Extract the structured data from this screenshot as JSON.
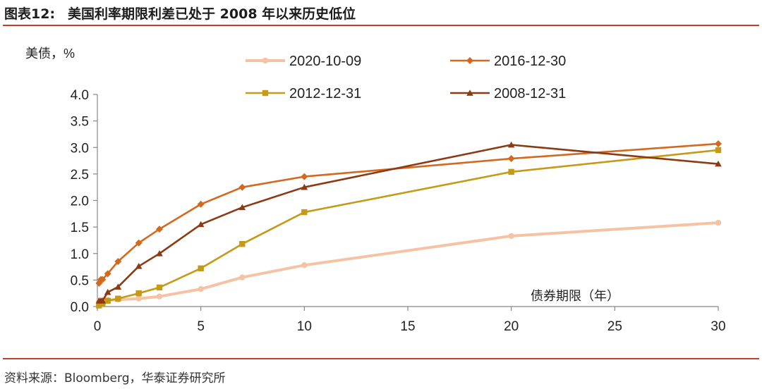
{
  "header": {
    "figure_number": "图表12:",
    "title": "美国利率期限利差已处于 2008 年以来历史低位"
  },
  "footer": {
    "source": "资料来源：Bloomberg，华泰证券研究所"
  },
  "chart_data": {
    "type": "line",
    "title": "美国利率期限利差已处于 2008 年以来历史低位",
    "ylabel": "美债，%",
    "xlabel": "债券期限（年）",
    "xlim": [
      0,
      30
    ],
    "ylim": [
      0,
      4
    ],
    "x_ticks": [
      0,
      5,
      10,
      15,
      20,
      25,
      30
    ],
    "y_ticks": [
      0.0,
      0.5,
      1.0,
      1.5,
      2.0,
      2.5,
      3.0,
      3.5,
      4.0
    ],
    "x_tick_labels": [
      "0",
      "5",
      "10",
      "15",
      "20",
      "25",
      "30"
    ],
    "y_tick_labels": [
      "0.0",
      "0.5",
      "1.0",
      "1.5",
      "2.0",
      "2.5",
      "3.0",
      "3.5",
      "4.0"
    ],
    "grid": false,
    "legend_position": "top",
    "x": [
      0.08,
      0.17,
      0.25,
      0.5,
      1,
      2,
      3,
      5,
      7,
      10,
      20,
      30
    ],
    "series": [
      {
        "name": "2020-10-09",
        "color": "#f5c3a4",
        "marker": "circle",
        "values": [
          0.1,
          0.1,
          0.11,
          0.12,
          0.13,
          0.15,
          0.19,
          0.33,
          0.55,
          0.78,
          1.33,
          1.58
        ]
      },
      {
        "name": "2016-12-30",
        "color": "#d2691e",
        "marker": "diamond",
        "values": [
          0.44,
          0.51,
          0.51,
          0.62,
          0.85,
          1.2,
          1.46,
          1.93,
          2.25,
          2.45,
          2.79,
          3.07
        ]
      },
      {
        "name": "2012-12-31",
        "color": "#c49a16",
        "marker": "square",
        "values": [
          0.02,
          0.05,
          0.05,
          0.11,
          0.15,
          0.25,
          0.36,
          0.72,
          1.18,
          1.78,
          2.54,
          2.95
        ]
      },
      {
        "name": "2008-12-31",
        "color": "#8b3a14",
        "marker": "triangle",
        "values": [
          0.11,
          0.11,
          0.11,
          0.27,
          0.37,
          0.76,
          1.0,
          1.55,
          1.87,
          2.25,
          3.05,
          2.69
        ]
      }
    ]
  }
}
